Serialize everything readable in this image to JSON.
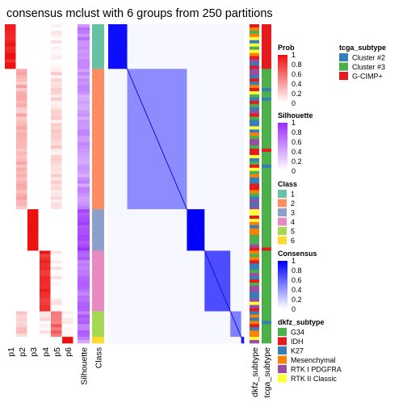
{
  "title": "consensus mclust with 6 groups from 250 partitions",
  "chart_data": {
    "type": "heatmap",
    "title": "consensus mclust with 6 groups from 250 partitions",
    "n_groups": 6,
    "n_partitions": 250,
    "prob_columns": [
      "p1",
      "p2",
      "p3",
      "p4",
      "p5",
      "p6"
    ],
    "column_labels": [
      "Silhouette",
      "Class"
    ],
    "annotation_columns": [
      "dkfz_subtype",
      "tcga_subtype"
    ],
    "row_groups": [
      {
        "class": "1",
        "rows": 14,
        "silhouette": 0.6,
        "prob": [
          0.95,
          0.0,
          0.0,
          0.0,
          0.05,
          0.0
        ],
        "tcga": "G-CIMP+"
      },
      {
        "class": "2",
        "rows": 44,
        "silhouette": 0.5,
        "prob": [
          0.0,
          0.3,
          0.0,
          0.0,
          0.15,
          0.0
        ],
        "tcga": "Cluster #3"
      },
      {
        "class": "3",
        "rows": 13,
        "silhouette": 0.9,
        "prob": [
          0.0,
          0.0,
          1.0,
          0.0,
          0.0,
          0.0
        ],
        "tcga": "Cluster #3"
      },
      {
        "class": "4",
        "rows": 19,
        "silhouette": 0.7,
        "prob": [
          0.0,
          0.0,
          0.0,
          0.9,
          0.05,
          0.0
        ],
        "tcga": "Cluster #3"
      },
      {
        "class": "5",
        "rows": 8,
        "silhouette": 0.7,
        "prob": [
          0.0,
          0.25,
          0.0,
          0.1,
          0.6,
          0.05
        ],
        "tcga": "Cluster #3"
      },
      {
        "class": "6",
        "rows": 2,
        "silhouette": 0.5,
        "prob": [
          0.0,
          0.0,
          0.0,
          0.0,
          0.0,
          1.0
        ],
        "tcga": "Cluster #3"
      }
    ],
    "within_consensus": [
      0.95,
      0.45,
      1.0,
      0.7,
      0.5,
      0.9
    ],
    "legends": {
      "prob": {
        "title": "Prob",
        "ticks": [
          "1",
          "0.8",
          "0.6",
          "0.4",
          "0.2",
          "0"
        ],
        "low": "#ffffff",
        "high": "#ee1111"
      },
      "silhouette": {
        "title": "Silhouette",
        "ticks": [
          "1",
          "0.8",
          "0.6",
          "0.4",
          "0.2",
          "0"
        ],
        "low": "#ffffff",
        "high": "#9b30ff"
      },
      "class": {
        "title": "Class",
        "labels": [
          "1",
          "2",
          "3",
          "4",
          "5",
          "6"
        ],
        "colors": [
          "#66c2a5",
          "#fc8d62",
          "#8da0cb",
          "#e78ac3",
          "#a6d854",
          "#ffd92f"
        ]
      },
      "consensus": {
        "title": "Consensus",
        "ticks": [
          "1",
          "0.8",
          "0.6",
          "0.4",
          "0.2",
          "0"
        ],
        "low": "#ffffff",
        "high": "#0000ff"
      },
      "dkfz_subtype": {
        "title": "dkfz_subtype",
        "labels": [
          "G34",
          "IDH",
          "K27",
          "Mesenchymal",
          "RTK I PDGFRA",
          "RTK II Classic"
        ],
        "colors": [
          "#4daf4a",
          "#e41a1c",
          "#377eb8",
          "#ff7f00",
          "#984ea3",
          "#ffff33"
        ]
      },
      "tcga_subtype": {
        "title": "tcga_subtype",
        "labels": [
          "Cluster #2",
          "Cluster #3",
          "G-CIMP+"
        ],
        "colors": [
          "#377eb8",
          "#4daf4a",
          "#e41a1c"
        ]
      }
    }
  }
}
